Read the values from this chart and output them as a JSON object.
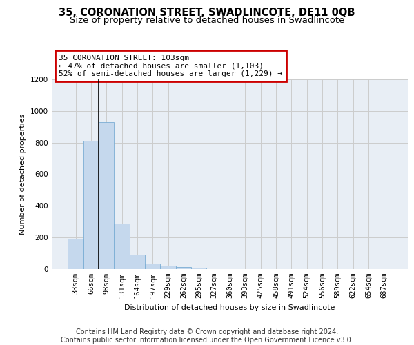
{
  "title": "35, CORONATION STREET, SWADLINCOTE, DE11 0QB",
  "subtitle": "Size of property relative to detached houses in Swadlincote",
  "xlabel": "Distribution of detached houses by size in Swadlincote",
  "ylabel": "Number of detached properties",
  "bin_labels": [
    "33sqm",
    "66sqm",
    "98sqm",
    "131sqm",
    "164sqm",
    "197sqm",
    "229sqm",
    "262sqm",
    "295sqm",
    "327sqm",
    "360sqm",
    "393sqm",
    "425sqm",
    "458sqm",
    "491sqm",
    "524sqm",
    "556sqm",
    "589sqm",
    "622sqm",
    "654sqm",
    "687sqm"
  ],
  "bar_values": [
    190,
    810,
    930,
    290,
    90,
    35,
    20,
    15,
    10,
    0,
    0,
    0,
    0,
    0,
    0,
    0,
    0,
    0,
    0,
    0,
    0
  ],
  "bar_color": "#c5d8ed",
  "bar_edge_color": "#7aadd4",
  "highlight_line_color": "#000000",
  "annotation_text": "35 CORONATION STREET: 103sqm\n← 47% of detached houses are smaller (1,103)\n52% of semi-detached houses are larger (1,229) →",
  "annotation_box_color": "#ffffff",
  "annotation_box_edge_color": "#cc0000",
  "ylim": [
    0,
    1200
  ],
  "yticks": [
    0,
    200,
    400,
    600,
    800,
    1000,
    1200
  ],
  "grid_color": "#cccccc",
  "background_color": "#e8eef5",
  "footer_text": "Contains HM Land Registry data © Crown copyright and database right 2024.\nContains public sector information licensed under the Open Government Licence v3.0.",
  "title_fontsize": 10.5,
  "subtitle_fontsize": 9.5,
  "axis_fontsize": 8,
  "tick_fontsize": 7.5,
  "annotation_fontsize": 8,
  "footer_fontsize": 7
}
